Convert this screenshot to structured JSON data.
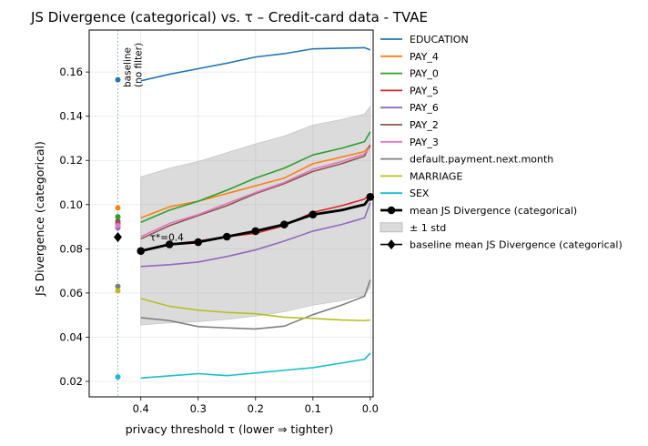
{
  "chart_data": {
    "type": "line",
    "title": "JS Divergence (categorical) vs. τ  – Credit-card data - TVAE",
    "xlabel": "privacy threshold τ  (lower ⇒ tighter)",
    "ylabel": "JS Divergence (categorical)",
    "xlim": [
      0.49,
      -0.005
    ],
    "ylim": [
      0.013,
      0.179
    ],
    "xticks": [
      0.4,
      0.3,
      0.2,
      0.1,
      0.0
    ],
    "xtick_labels": [
      "0.4",
      "0.3",
      "0.2",
      "0.1",
      "0.0"
    ],
    "yticks": [
      0.02,
      0.04,
      0.06,
      0.08,
      0.1,
      0.12,
      0.14,
      0.16
    ],
    "ytick_labels": [
      "0.02",
      "0.04",
      "0.06",
      "0.08",
      "0.10",
      "0.12",
      "0.14",
      "0.16"
    ],
    "grid": true,
    "baseline_x": 0.44,
    "baseline_annotation": "baseline\n(no filter)",
    "tau_annotation": "τ*=0.4",
    "x": [
      0.4,
      0.35,
      0.3,
      0.25,
      0.2,
      0.15,
      0.1,
      0.05,
      0.01,
      0.0
    ],
    "series": [
      {
        "name": "EDUCATION",
        "color": "#1f77b4",
        "values": [
          0.156,
          0.159,
          0.1615,
          0.164,
          0.1668,
          0.1683,
          0.1705,
          0.1708,
          0.171,
          0.17
        ],
        "baseline": 0.1565
      },
      {
        "name": "PAY_4",
        "color": "#ff7f0e",
        "values": [
          0.094,
          0.099,
          0.1015,
          0.105,
          0.1085,
          0.112,
          0.1185,
          0.1215,
          0.124,
          0.127
        ],
        "baseline": 0.0985
      },
      {
        "name": "PAY_0",
        "color": "#2ca02c",
        "values": [
          0.092,
          0.0975,
          0.1015,
          0.1065,
          0.112,
          0.1165,
          0.1225,
          0.1255,
          0.1285,
          0.133
        ],
        "baseline": 0.0945
      },
      {
        "name": "PAY_5",
        "color": "#d62728",
        "values": [
          0.079,
          0.082,
          0.0835,
          0.0855,
          0.087,
          0.0905,
          0.0965,
          0.0995,
          0.1025,
          0.105
        ],
        "baseline": 0.0915
      },
      {
        "name": "PAY_6",
        "color": "#9467bd",
        "values": [
          0.072,
          0.0728,
          0.074,
          0.0765,
          0.0795,
          0.0835,
          0.088,
          0.091,
          0.094,
          0.101
        ],
        "baseline": 0.0895
      },
      {
        "name": "PAY_2",
        "color": "#8c564b",
        "values": [
          0.0845,
          0.0905,
          0.095,
          0.0995,
          0.105,
          0.1095,
          0.115,
          0.1185,
          0.122,
          0.127
        ],
        "baseline": 0.0925
      },
      {
        "name": "PAY_3",
        "color": "#e377c2",
        "values": [
          0.0855,
          0.0915,
          0.0955,
          0.1005,
          0.1055,
          0.11,
          0.116,
          0.1195,
          0.123,
          0.126
        ],
        "baseline": 0.0905
      },
      {
        "name": "default.payment.next.month",
        "color": "#7f7f7f",
        "values": [
          0.0488,
          0.0475,
          0.0448,
          0.0442,
          0.0437,
          0.045,
          0.0502,
          0.0545,
          0.0585,
          0.066
        ],
        "baseline": 0.063
      },
      {
        "name": "MARRIAGE",
        "color": "#bcbd22",
        "values": [
          0.0575,
          0.054,
          0.0522,
          0.0512,
          0.0506,
          0.049,
          0.0485,
          0.0478,
          0.0475,
          0.0478
        ],
        "baseline": 0.061
      },
      {
        "name": "SEX",
        "color": "#17becf",
        "values": [
          0.0215,
          0.0225,
          0.0235,
          0.0226,
          0.0238,
          0.025,
          0.0262,
          0.0283,
          0.03,
          0.0328
        ],
        "baseline": 0.022
      }
    ],
    "mean": {
      "name": "mean JS Divergence (categorical)",
      "color": "#000000",
      "x": [
        0.4,
        0.35,
        0.3,
        0.25,
        0.2,
        0.15,
        0.1,
        0.0
      ],
      "values": [
        0.079,
        0.082,
        0.083,
        0.0855,
        0.088,
        0.091,
        0.0955,
        0.1035
      ],
      "line_x": [
        0.4,
        0.35,
        0.3,
        0.25,
        0.2,
        0.15,
        0.1,
        0.05,
        0.01,
        0.0
      ],
      "line_values": [
        0.079,
        0.082,
        0.083,
        0.0855,
        0.088,
        0.091,
        0.0955,
        0.0975,
        0.1,
        0.1035
      ]
    },
    "std_band": {
      "name": "± 1 std",
      "color": "#b0b0b0",
      "x": [
        0.4,
        0.35,
        0.3,
        0.25,
        0.2,
        0.15,
        0.1,
        0.05,
        0.01,
        0.0
      ],
      "upper": [
        0.1125,
        0.1165,
        0.1195,
        0.1235,
        0.1275,
        0.131,
        0.136,
        0.1385,
        0.141,
        0.1445
      ],
      "lower": [
        0.0455,
        0.0465,
        0.047,
        0.048,
        0.0495,
        0.0515,
        0.0545,
        0.0565,
        0.059,
        0.0625
      ]
    },
    "baseline_mean": {
      "name": "baseline mean JS Divergence (categorical)",
      "x": 0.44,
      "value": 0.0853
    },
    "legend_position": "outside right"
  }
}
